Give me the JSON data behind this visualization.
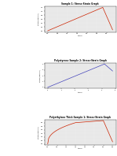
{
  "title1": "Sample 1: Stress-Strain Graph",
  "title2": "Polystyrene Sample 2: Stress-Strain Graph",
  "title3": "Polyethylene Thick Sample 1: Stress-Strain Graph",
  "title2_prefix": "Polystyrene ",
  "title3_prefix": "Polyethylene Thick ",
  "xlabel1": "Strain",
  "xlabel2": "Strain",
  "xlabel3": "Strain",
  "ylabel": "Stress (Mpascal)",
  "bg_color": "#ffffff",
  "line_color_red": "#cc2200",
  "line_color_blue": "#4444bb",
  "graph_bg": "#e8e8e8"
}
